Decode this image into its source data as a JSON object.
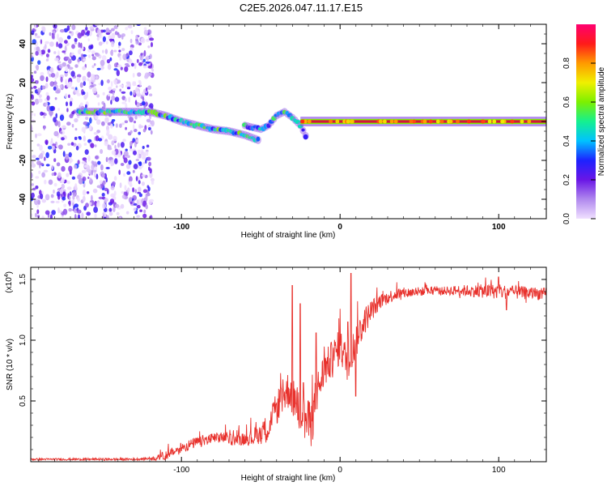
{
  "title": "C2E5.2026.047.11.17.E15",
  "colors": {
    "snr_line": "#e8312c",
    "signal_band": "#d4143b",
    "frame": "#000000"
  },
  "chart_data": [
    {
      "type": "heatmap",
      "name": "spectrogram",
      "xlabel": "Height of straight line (km)",
      "ylabel": "Frequency (Hz)",
      "xlim": [
        -195,
        130
      ],
      "ylim": [
        -50,
        50
      ],
      "xticks": [
        -100,
        0,
        100
      ],
      "xtick_labels": [
        "-100",
        "0",
        "100"
      ],
      "yticks": [
        -40,
        -20,
        0,
        20,
        40
      ],
      "ytick_labels": [
        "-40",
        "-20",
        "0",
        "20",
        "40"
      ],
      "colorbar": {
        "label": "Normalized spectral amplitude",
        "range": [
          0,
          1
        ],
        "ticks": [
          0.0,
          0.2,
          0.4,
          0.6,
          0.8
        ],
        "tick_labels": [
          "0.0",
          "0.2",
          "0.4",
          "0.6",
          "0.8"
        ],
        "colors": [
          "#f0e0ff",
          "#b088ee",
          "#6a16e6",
          "#1d22ff",
          "#00c2ff",
          "#14f090",
          "#7cf000",
          "#f0f000",
          "#ff9a00",
          "#ff1a1a",
          "#ff0070"
        ]
      },
      "features": [
        {
          "label": "noise region",
          "x_range": [
            -195,
            -118
          ],
          "freq_range": [
            -50,
            50
          ],
          "amplitude": 0.1
        },
        {
          "label": "signal track",
          "points": [
            [
              -165,
              5
            ],
            [
              -140,
              5
            ],
            [
              -120,
              5
            ],
            [
              -110,
              3
            ],
            [
              -100,
              0
            ],
            [
              -90,
              -2
            ],
            [
              -80,
              -4
            ],
            [
              -70,
              -5
            ],
            [
              -60,
              -7
            ],
            [
              -50,
              -10
            ]
          ],
          "amplitude": 0.5
        },
        {
          "label": "branch",
          "points": [
            [
              -60,
              -2
            ],
            [
              -50,
              -4
            ],
            [
              -45,
              -2
            ],
            [
              -40,
              3
            ],
            [
              -35,
              5
            ],
            [
              -30,
              2
            ],
            [
              -25,
              -2
            ],
            [
              -20,
              -10
            ]
          ],
          "amplitude": 0.45
        },
        {
          "label": "steady line",
          "points": [
            [
              -25,
              0
            ],
            [
              0,
              0
            ],
            [
              50,
              0
            ],
            [
              100,
              0
            ],
            [
              130,
              0
            ]
          ],
          "amplitude": 0.9
        }
      ]
    },
    {
      "type": "line",
      "name": "snr",
      "xlabel": "Height of straight line (km)",
      "ylabel": "SNR (10 * v/v)",
      "scale_label": "(x10",
      "scale_exponent": "4",
      "xlim": [
        -195,
        130
      ],
      "ylim": [
        0,
        1.6
      ],
      "xticks": [
        -100,
        0,
        100
      ],
      "xtick_labels": [
        "-100",
        "0",
        "100"
      ],
      "yticks": [
        0.5,
        1.0,
        1.5
      ],
      "ytick_labels": [
        "0.5",
        "1.0",
        "1.5"
      ],
      "envelope": [
        [
          -195,
          0.02
        ],
        [
          -130,
          0.02
        ],
        [
          -115,
          0.03
        ],
        [
          -105,
          0.08
        ],
        [
          -95,
          0.14
        ],
        [
          -85,
          0.18
        ],
        [
          -75,
          0.2
        ],
        [
          -65,
          0.18
        ],
        [
          -55,
          0.2
        ],
        [
          -45,
          0.28
        ],
        [
          -38,
          0.5
        ],
        [
          -32,
          0.6
        ],
        [
          -27,
          0.45
        ],
        [
          -22,
          0.35
        ],
        [
          -18,
          0.3
        ],
        [
          -15,
          0.55
        ],
        [
          -10,
          0.75
        ],
        [
          -5,
          0.85
        ],
        [
          0,
          0.95
        ],
        [
          5,
          0.8
        ],
        [
          10,
          1.0
        ],
        [
          15,
          1.15
        ],
        [
          20,
          1.25
        ],
        [
          25,
          1.32
        ],
        [
          35,
          1.38
        ],
        [
          50,
          1.4
        ],
        [
          75,
          1.41
        ],
        [
          100,
          1.4
        ],
        [
          130,
          1.38
        ]
      ],
      "spikes": [
        [
          -30,
          1.45
        ],
        [
          -25,
          1.3
        ],
        [
          -23,
          0.65
        ],
        [
          -20,
          0.5
        ],
        [
          -15,
          1.06
        ],
        [
          5,
          1.15
        ],
        [
          7,
          1.55
        ],
        [
          10,
          0.54
        ],
        [
          100,
          1.52
        ],
        [
          105,
          1.25
        ]
      ],
      "noise_amplitude": [
        [
          -195,
          0.008
        ],
        [
          -120,
          0.01
        ],
        [
          -110,
          0.04
        ],
        [
          -60,
          0.05
        ],
        [
          -45,
          0.12
        ],
        [
          -20,
          0.2
        ],
        [
          -10,
          0.15
        ],
        [
          10,
          0.15
        ],
        [
          25,
          0.06
        ],
        [
          60,
          0.03
        ],
        [
          95,
          0.06
        ],
        [
          130,
          0.05
        ]
      ]
    }
  ]
}
